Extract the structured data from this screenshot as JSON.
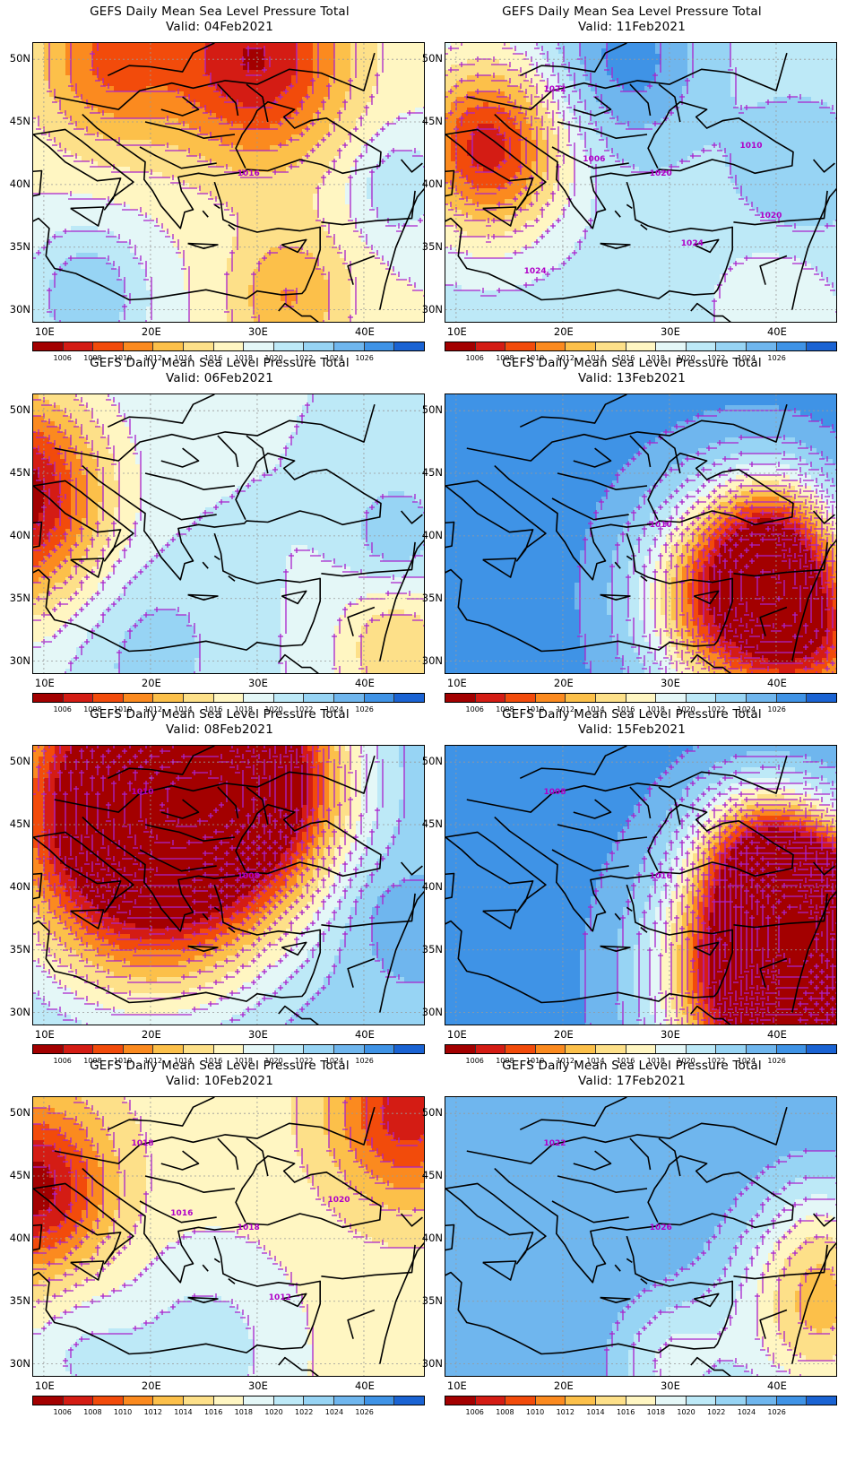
{
  "colors": {
    "levels": [
      "#a30000",
      "#d41c14",
      "#f24b0b",
      "#fb8a1f",
      "#fcc04a",
      "#fde089",
      "#fff6c2",
      "#e4f7f7",
      "#bde9f7",
      "#97d4f4",
      "#6fb6ee",
      "#3f93e6",
      "#1a63d3"
    ],
    "contour": "#aa22cc",
    "coast": "#000000"
  },
  "colorbar_labels": [
    "1006",
    "1008",
    "1010",
    "1012",
    "1014",
    "1016",
    "1018",
    "1020",
    "1022",
    "1024",
    "1026"
  ],
  "axes": {
    "lat_labels": [
      "50N",
      "45N",
      "40N",
      "35N",
      "30N"
    ],
    "lon_labels": [
      "10E",
      "20E",
      "30E",
      "40E"
    ]
  },
  "panels": [
    {
      "title": "GEFS Daily Mean Sea Level Pressure Total",
      "valid": "Valid: 04Feb2021",
      "iso_labels": [
        "1016"
      ],
      "field": {
        "base": 1018,
        "centers": [
          [
            30,
            50,
            -12,
            6
          ],
          [
            16,
            50,
            -8,
            5
          ],
          [
            33,
            31,
            -6,
            4
          ],
          [
            14,
            31,
            6,
            4
          ],
          [
            43,
            40,
            4,
            3
          ]
        ]
      }
    },
    {
      "title": "GEFS Daily Mean Sea Level Pressure Total",
      "valid": "Valid: 11Feb2021",
      "iso_labels": [
        "1020",
        "1022",
        "1024",
        "1006",
        "1010",
        "1024",
        "1020"
      ],
      "field": {
        "base": 1021,
        "centers": [
          [
            13,
            43,
            -14,
            5
          ],
          [
            26,
            50,
            6,
            5
          ],
          [
            42,
            41,
            3,
            4
          ],
          [
            40,
            30,
            -3,
            4
          ]
        ]
      }
    },
    {
      "title": "GEFS Daily Mean Sea Level Pressure Total",
      "valid": "Valid: 06Feb2021",
      "iso_labels": [],
      "field": {
        "base": 1020,
        "centers": [
          [
            7,
            43,
            -16,
            6
          ],
          [
            43,
            40,
            4,
            3
          ],
          [
            43,
            31,
            -6,
            4
          ],
          [
            20,
            31,
            3,
            5
          ]
        ]
      }
    },
    {
      "title": "GEFS Daily Mean Sea Level Pressure Total",
      "valid": "Valid: 13Feb2021",
      "iso_labels": [
        "1010"
      ],
      "field": {
        "base": 1027,
        "centers": [
          [
            36,
            35,
            -20,
            6
          ],
          [
            44,
            32,
            -14,
            5
          ],
          [
            40,
            40,
            -10,
            4
          ]
        ]
      }
    },
    {
      "title": "GEFS Daily Mean Sea Level Pressure Total",
      "valid": "Valid: 08Feb2021",
      "iso_labels": [
        "1008",
        "1010"
      ],
      "field": {
        "base": 1024,
        "centers": [
          [
            20,
            46,
            -30,
            9
          ],
          [
            30,
            49,
            -14,
            6
          ],
          [
            42,
            38,
            2,
            3
          ]
        ]
      }
    },
    {
      "title": "GEFS Daily Mean Sea Level Pressure Total",
      "valid": "Valid: 15Feb2021",
      "iso_labels": [
        "1016",
        "1008"
      ],
      "field": {
        "base": 1027,
        "centers": [
          [
            40,
            33,
            -30,
            7
          ],
          [
            44,
            38,
            -18,
            5
          ],
          [
            38,
            43,
            -10,
            4
          ]
        ]
      }
    },
    {
      "title": "GEFS Daily Mean Sea Level Pressure Total",
      "valid": "Valid: 10Feb2021",
      "iso_labels": [
        "1018",
        "1018",
        "1012",
        "1016",
        "1020"
      ],
      "field": {
        "base": 1017,
        "centers": [
          [
            9,
            44,
            -12,
            5
          ],
          [
            44,
            50,
            -10,
            5
          ],
          [
            25,
            31,
            4,
            6
          ],
          [
            13,
            31,
            3,
            4
          ]
        ]
      }
    },
    {
      "title": "GEFS Daily Mean Sea Level Pressure Total",
      "valid": "Valid: 17Feb2021",
      "iso_labels": [
        "1026",
        "1022"
      ],
      "field": {
        "base": 1026,
        "centers": [
          [
            44,
            34,
            -12,
            6
          ],
          [
            30,
            30,
            -6,
            4
          ],
          [
            44,
            41,
            -3,
            4
          ]
        ]
      }
    }
  ]
}
